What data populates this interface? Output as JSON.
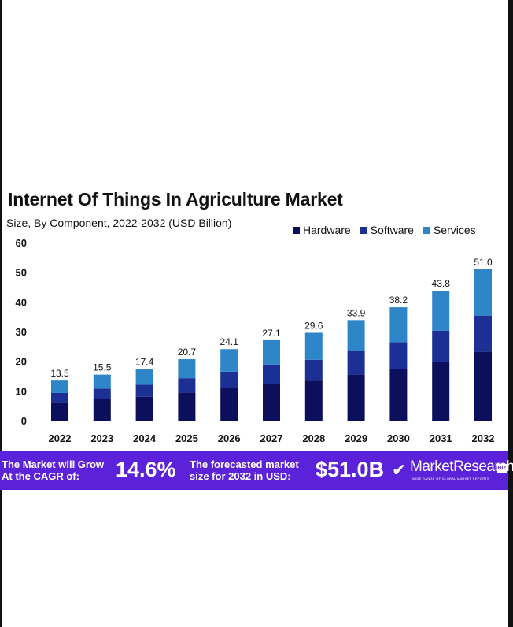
{
  "chart_data": {
    "type": "bar",
    "stacked": true,
    "title": "Internet Of Things In Agriculture Market",
    "subtitle": "Size, By Component, 2022-2032 (USD Billion)",
    "categories": [
      "2022",
      "2023",
      "2024",
      "2025",
      "2026",
      "2027",
      "2028",
      "2029",
      "2030",
      "2031",
      "2032"
    ],
    "series": [
      {
        "name": "Hardware",
        "color": "#0b0f5c",
        "values": [
          6.3,
          7.2,
          8.0,
          9.4,
          11.0,
          12.4,
          13.5,
          15.5,
          17.3,
          19.8,
          23.2
        ]
      },
      {
        "name": "Software",
        "color": "#1c2f94",
        "values": [
          3.0,
          3.6,
          4.1,
          4.9,
          5.5,
          6.5,
          7.0,
          8.1,
          9.1,
          10.5,
          12.2
        ]
      },
      {
        "name": "Services",
        "color": "#2e86c9",
        "values": [
          4.2,
          4.7,
          5.3,
          6.4,
          7.6,
          8.2,
          9.1,
          10.3,
          11.8,
          13.5,
          15.6
        ]
      }
    ],
    "totals": [
      "13.5",
      "15.5",
      "17.4",
      "20.7",
      "24.1",
      "27.1",
      "29.6",
      "33.9",
      "38.2",
      "43.8",
      "51.0"
    ],
    "y_ticks": [
      0,
      10,
      20,
      30,
      40,
      50,
      60
    ],
    "ylim": [
      0,
      60
    ],
    "grid": false,
    "legend_position": "top-right"
  },
  "banner": {
    "cagr_text": "The Market will Grow At the CAGR of:",
    "cagr_value": "14.6%",
    "forecast_text": "The forecasted market size for 2032 in USD:",
    "forecast_value": "$51.0B",
    "logo_icon": "checkmark-logo-icon",
    "logo_name": "MarketResearch",
    "logo_badge": "BIZ",
    "logo_tagline": "WIDE RANGE OF GLOBAL MARKET REPORTS"
  }
}
